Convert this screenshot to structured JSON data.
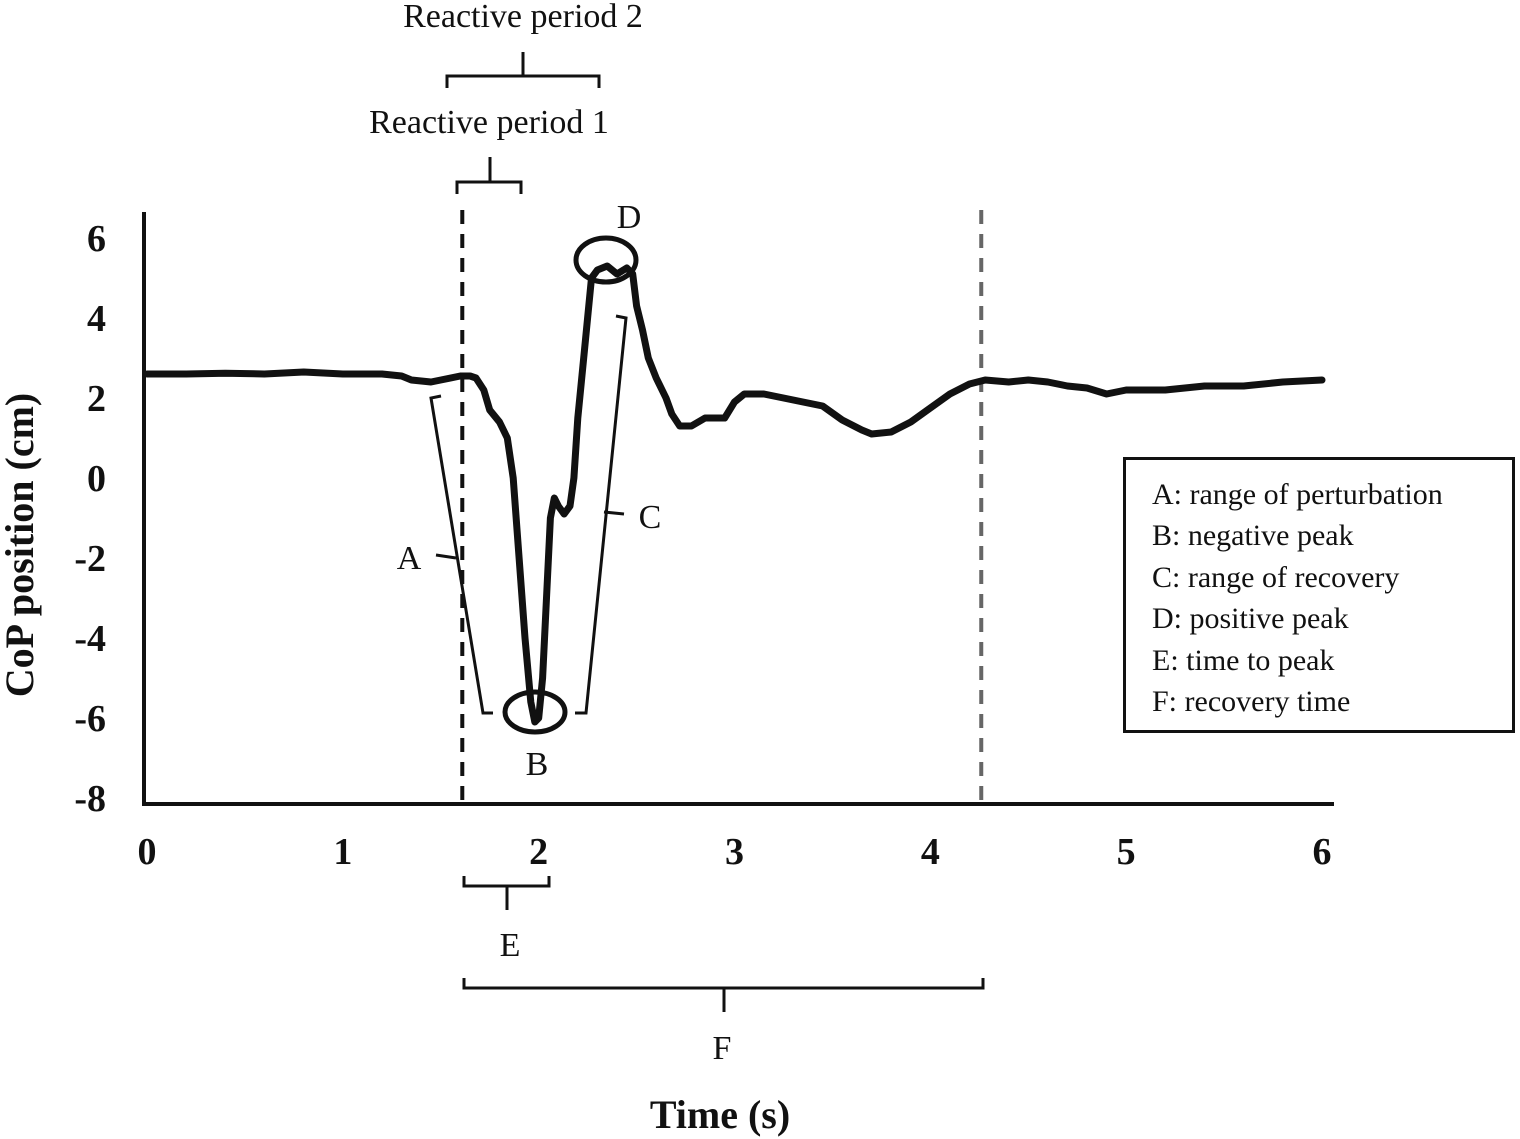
{
  "chart_data": {
    "type": "line",
    "xlabel": "Time (s)",
    "ylabel": "CoP position (cm)",
    "xlim": [
      0,
      6
    ],
    "ylim": [
      -8,
      6
    ],
    "x_ticks": [
      "0",
      "1",
      "2",
      "3",
      "4",
      "5",
      "6"
    ],
    "y_ticks": [
      "6",
      "4",
      "2",
      "0",
      "-2",
      "-4",
      "-6",
      "-8"
    ],
    "grid": false,
    "series": [
      {
        "color": "#111111",
        "points": [
          [
            0.0,
            2.6
          ],
          [
            0.2,
            2.6
          ],
          [
            0.4,
            2.62
          ],
          [
            0.6,
            2.6
          ],
          [
            0.8,
            2.65
          ],
          [
            1.0,
            2.6
          ],
          [
            1.2,
            2.6
          ],
          [
            1.3,
            2.55
          ],
          [
            1.35,
            2.45
          ],
          [
            1.45,
            2.4
          ],
          [
            1.5,
            2.45
          ],
          [
            1.6,
            2.55
          ],
          [
            1.65,
            2.55
          ],
          [
            1.68,
            2.5
          ],
          [
            1.72,
            2.2
          ],
          [
            1.75,
            1.7
          ],
          [
            1.8,
            1.4
          ],
          [
            1.84,
            1.0
          ],
          [
            1.87,
            0.0
          ],
          [
            1.9,
            -2.0
          ],
          [
            1.93,
            -4.0
          ],
          [
            1.96,
            -5.6
          ],
          [
            1.98,
            -6.1
          ],
          [
            2.0,
            -6.0
          ],
          [
            2.02,
            -5.0
          ],
          [
            2.04,
            -3.0
          ],
          [
            2.06,
            -1.0
          ],
          [
            2.08,
            -0.5
          ],
          [
            2.1,
            -0.7
          ],
          [
            2.13,
            -0.9
          ],
          [
            2.16,
            -0.7
          ],
          [
            2.18,
            0.0
          ],
          [
            2.2,
            1.5
          ],
          [
            2.23,
            3.0
          ],
          [
            2.25,
            4.0
          ],
          [
            2.27,
            5.0
          ],
          [
            2.3,
            5.2
          ],
          [
            2.35,
            5.3
          ],
          [
            2.4,
            5.1
          ],
          [
            2.45,
            5.25
          ],
          [
            2.48,
            5.1
          ],
          [
            2.5,
            4.3
          ],
          [
            2.53,
            3.7
          ],
          [
            2.56,
            3.0
          ],
          [
            2.6,
            2.5
          ],
          [
            2.65,
            2.0
          ],
          [
            2.68,
            1.6
          ],
          [
            2.72,
            1.3
          ],
          [
            2.78,
            1.3
          ],
          [
            2.85,
            1.5
          ],
          [
            2.95,
            1.5
          ],
          [
            3.0,
            1.9
          ],
          [
            3.05,
            2.1
          ],
          [
            3.15,
            2.1
          ],
          [
            3.25,
            2.0
          ],
          [
            3.35,
            1.9
          ],
          [
            3.45,
            1.8
          ],
          [
            3.55,
            1.45
          ],
          [
            3.65,
            1.2
          ],
          [
            3.7,
            1.1
          ],
          [
            3.8,
            1.15
          ],
          [
            3.9,
            1.4
          ],
          [
            4.0,
            1.75
          ],
          [
            4.1,
            2.1
          ],
          [
            4.2,
            2.35
          ],
          [
            4.28,
            2.45
          ],
          [
            4.4,
            2.4
          ],
          [
            4.5,
            2.45
          ],
          [
            4.6,
            2.4
          ],
          [
            4.7,
            2.3
          ],
          [
            4.8,
            2.25
          ],
          [
            4.9,
            2.1
          ],
          [
            5.0,
            2.2
          ],
          [
            5.2,
            2.2
          ],
          [
            5.4,
            2.3
          ],
          [
            5.6,
            2.3
          ],
          [
            5.8,
            2.4
          ],
          [
            6.0,
            2.45
          ]
        ]
      }
    ],
    "reference_lines_x": [
      {
        "x": 1.61,
        "style": "dashed",
        "color": "#111111"
      },
      {
        "x": 4.26,
        "style": "dashed",
        "color": "#666666"
      }
    ],
    "annotations": {
      "reactive_period_1": "Reactive period 1",
      "reactive_period_2": "Reactive period 2",
      "A": "A",
      "B": "B",
      "C": "C",
      "D": "D",
      "E": "E",
      "F": "F"
    },
    "legend": {
      "placement": "right",
      "items": [
        "A: range of perturbation",
        "B: negative peak",
        "C: range of recovery",
        "D: positive peak",
        "E: time to peak",
        "F: recovery time"
      ]
    }
  }
}
